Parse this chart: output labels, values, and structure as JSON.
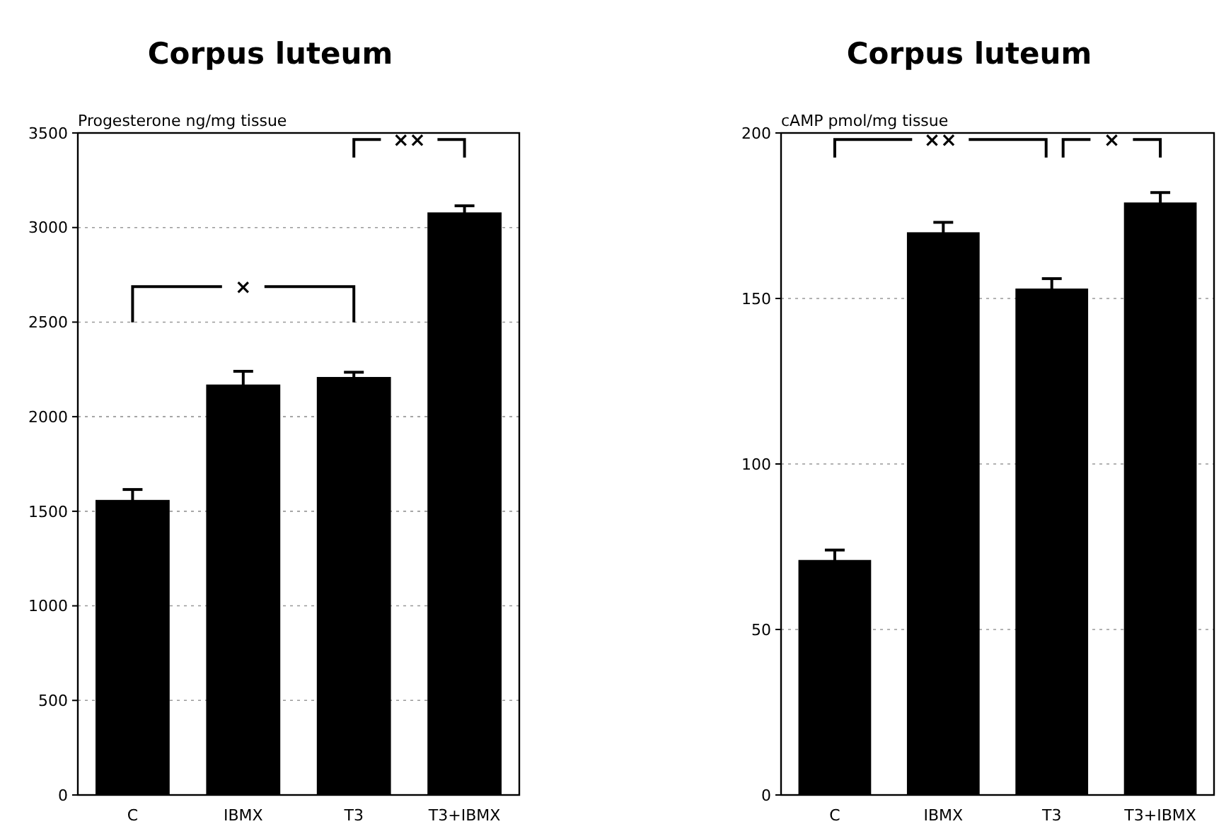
{
  "chart_data": [
    {
      "type": "bar",
      "title": "Corpus luteum",
      "ylabel": "Progesterone ng/mg tissue",
      "categories": [
        "C",
        "IBMX",
        "T3",
        "T3+IBMX"
      ],
      "values": [
        1560,
        2170,
        2210,
        3080
      ],
      "errors": [
        55,
        70,
        25,
        35
      ],
      "color": "#000000",
      "ylim": [
        0,
        3500
      ],
      "yticks": [
        0,
        500,
        {
          "value": 1000,
          "label": "1000"
        },
        {
          "value": 1500,
          "label": "1500"
        },
        2000,
        2500,
        3000,
        3500
      ],
      "grid": "y",
      "annotations": [
        "×",
        "××"
      ]
    },
    {
      "type": "bar",
      "title": "Corpus luteum",
      "ylabel": "cAMP pmol/mg tissue",
      "categories": [
        "C",
        "IBMX",
        "T3",
        "T3+IBMX"
      ],
      "values": [
        71,
        170,
        153,
        179
      ],
      "errors": [
        3,
        3,
        3,
        3
      ],
      "color": "#000000",
      "ylim": [
        0,
        200
      ],
      "yticks": [
        0,
        50,
        100,
        150,
        200
      ],
      "grid": "y",
      "annotations": [
        "××",
        "×"
      ]
    }
  ]
}
